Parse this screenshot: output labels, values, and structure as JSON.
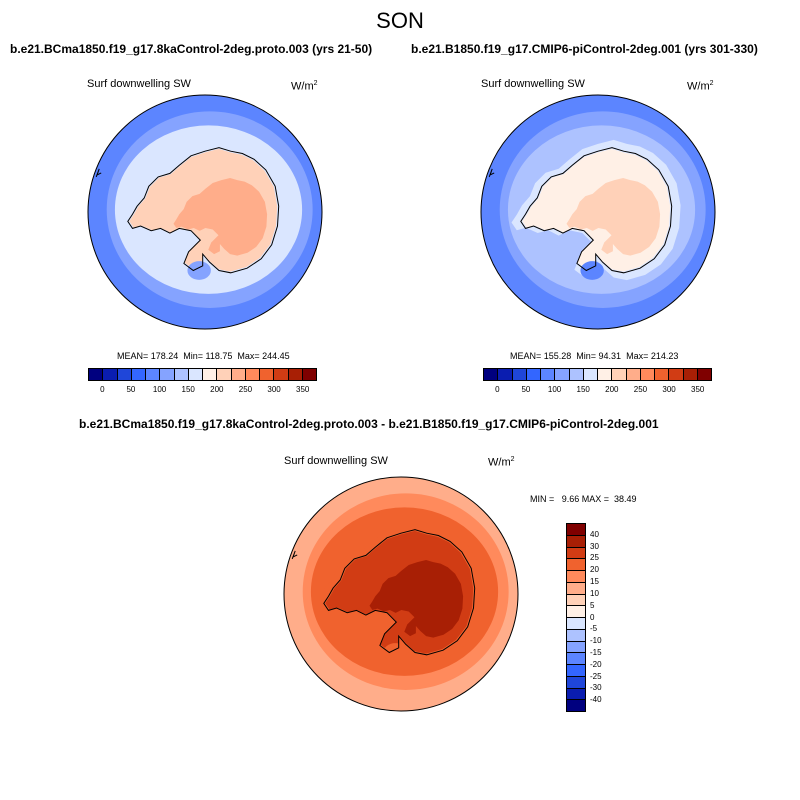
{
  "page": {
    "season": "SON"
  },
  "chart_data": [
    {
      "type": "heatmap",
      "projection": "south-polar-stereographic",
      "title": "b.e21.BCma1850.f19_g17.8kaControl-2deg.proto.003 (yrs 21-50)",
      "variable": "Surf downwelling SW",
      "units_base": "W/m",
      "units_exp": "2",
      "stats_text": "MEAN= 178.24  Min= 118.75  Max= 244.45",
      "mean": 178.24,
      "min": 118.75,
      "max": 244.45,
      "colorbar": {
        "orientation": "horizontal",
        "levels": [
          0,
          25,
          50,
          75,
          100,
          125,
          150,
          175,
          200,
          225,
          250,
          275,
          300,
          325,
          350
        ],
        "tick_labels": [
          "0",
          "50",
          "100",
          "150",
          "200",
          "250",
          "300",
          "350"
        ],
        "colors": [
          "#00007f",
          "#0a1db0",
          "#1f46d9",
          "#3366ff",
          "#5c85ff",
          "#85a3ff",
          "#adc2ff",
          "#dae6ff",
          "#fff0e6",
          "#ffd1b8",
          "#ffad8a",
          "#ff8a5c",
          "#f0622e",
          "#d13c14",
          "#a81f05",
          "#7f0000"
        ]
      },
      "field": {
        "ocean_outer": 100,
        "ocean_mid": 125,
        "ocean_inner": 160,
        "coast_band": 175,
        "land_edge": 205,
        "land_interior": 230,
        "weddell": 120
      }
    },
    {
      "type": "heatmap",
      "projection": "south-polar-stereographic",
      "title": "b.e21.B1850.f19_g17.CMIP6-piControl-2deg.001 (yrs 301-330)",
      "variable": "Surf downwelling SW",
      "units_base": "W/m",
      "units_exp": "2",
      "stats_text": "MEAN= 155.28  Min= 94.31  Max= 214.23",
      "mean": 155.28,
      "min": 94.31,
      "max": 214.23,
      "colorbar": {
        "orientation": "horizontal",
        "levels": [
          0,
          25,
          50,
          75,
          100,
          125,
          150,
          175,
          200,
          225,
          250,
          275,
          300,
          325,
          350
        ],
        "tick_labels": [
          "0",
          "50",
          "100",
          "150",
          "200",
          "250",
          "300",
          "350"
        ],
        "colors": [
          "#00007f",
          "#0a1db0",
          "#1f46d9",
          "#3366ff",
          "#5c85ff",
          "#85a3ff",
          "#adc2ff",
          "#dae6ff",
          "#fff0e6",
          "#ffd1b8",
          "#ffad8a",
          "#ff8a5c",
          "#f0622e",
          "#d13c14",
          "#a81f05",
          "#7f0000"
        ]
      },
      "field": {
        "ocean_outer": 90,
        "ocean_mid": 110,
        "ocean_inner": 130,
        "coast_band": 160,
        "land_edge": 185,
        "land_interior": 205,
        "weddell": 100
      }
    },
    {
      "type": "heatmap",
      "projection": "south-polar-stereographic",
      "title": "b.e21.BCma1850.f19_g17.8kaControl-2deg.proto.003 - b.e21.B1850.f19_g17.CMIP6-piControl-2deg.001",
      "variable": "Surf downwelling SW",
      "units_base": "W/m",
      "units_exp": "2",
      "stats_text": "MIN =   9.66 MAX =  38.49",
      "min": 9.66,
      "max": 38.49,
      "colorbar": {
        "orientation": "vertical",
        "levels": [
          -40,
          -30,
          -25,
          -20,
          -15,
          -10,
          -5,
          0,
          5,
          10,
          15,
          20,
          25,
          30,
          40
        ],
        "tick_labels": [
          "-40",
          "-30",
          "-25",
          "-20",
          "-15",
          "-10",
          "-5",
          "0",
          "5",
          "10",
          "15",
          "20",
          "25",
          "30",
          "40"
        ],
        "colors": [
          "#00007f",
          "#0a1db0",
          "#1f46d9",
          "#3366ff",
          "#5c85ff",
          "#85a3ff",
          "#adc2ff",
          "#dae6ff",
          "#fff0e6",
          "#ffd1b8",
          "#ffad8a",
          "#ff8a5c",
          "#f0622e",
          "#d13c14",
          "#a81f05",
          "#7f0000"
        ]
      },
      "field": {
        "ocean_outer": 14,
        "ocean_mid": 17,
        "ocean_inner": 22,
        "coast_band": 22,
        "land_edge": 27,
        "land_interior": 32,
        "weddell": 22
      }
    }
  ]
}
